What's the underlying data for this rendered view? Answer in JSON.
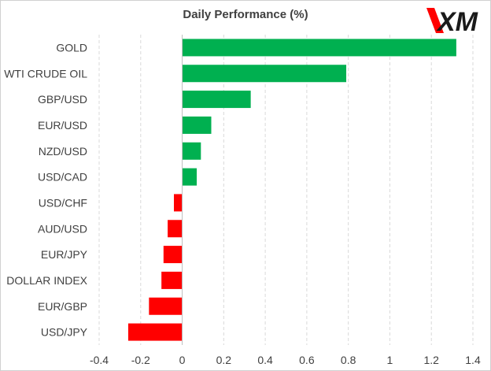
{
  "chart_data": {
    "type": "bar",
    "orientation": "horizontal",
    "title": "Daily Performance (%)",
    "xlabel": "",
    "ylabel": "",
    "categories": [
      "GOLD",
      "WTI CRUDE OIL",
      "GBP/USD",
      "EUR/USD",
      "NZD/USD",
      "USD/CAD",
      "USD/CHF",
      "AUD/USD",
      "EUR/JPY",
      "DOLLAR INDEX",
      "EUR/GBP",
      "USD/JPY"
    ],
    "values": [
      1.32,
      0.79,
      0.33,
      0.14,
      0.09,
      0.07,
      -0.04,
      -0.07,
      -0.09,
      -0.1,
      -0.16,
      -0.26
    ],
    "xlim": [
      -0.4,
      1.4
    ],
    "xticks": [
      -0.4,
      -0.2,
      0,
      0.2,
      0.4,
      0.6,
      0.8,
      1,
      1.2,
      1.4
    ],
    "grid": "vertical-dashed",
    "legend": "none",
    "colors": {
      "positive": "#00b050",
      "negative": "#ff0000",
      "grid": "#d9d9d9",
      "axis": "#bfbfbf",
      "text": "#404040"
    }
  },
  "logo": {
    "brand": "XM",
    "accent_color": "#ff0000",
    "text_color": "#1a1a1a"
  }
}
